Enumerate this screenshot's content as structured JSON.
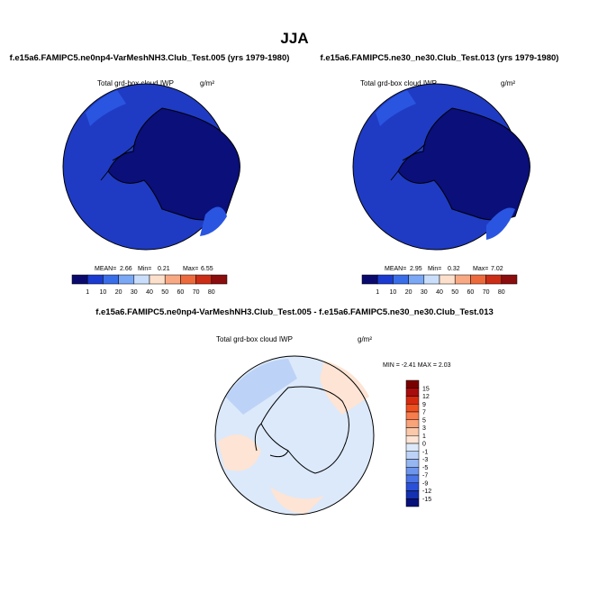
{
  "title": "JJA",
  "panels": [
    {
      "title": "f.e15a6.FAMIPC5.ne0np4-VarMeshNH3.Club_Test.005 (yrs 1979-1980)",
      "subtitle": "Total grd-box cloud IWP",
      "units": "g/m²",
      "stats": [
        "MEAN=",
        "2.66",
        "Min=",
        "0.21",
        "Max=",
        "6.55"
      ]
    },
    {
      "title": "f.e15a6.FAMIPC5.ne30_ne30.Club_Test.013 (yrs 1979-1980)",
      "subtitle": "Total grd-box cloud IWP",
      "units": "g/m²",
      "stats": [
        "MEAN=",
        "2.95",
        "Min=",
        "0.32",
        "Max=",
        "7.02"
      ]
    }
  ],
  "colorbar": {
    "labels": [
      1,
      10,
      20,
      30,
      40,
      50,
      60,
      70,
      80
    ],
    "colors": [
      "#0a0a6e",
      "#1b3ad0",
      "#3a6ee8",
      "#7aa8f5",
      "#c9defb",
      "#fde0cc",
      "#f8a983",
      "#ed6a3d",
      "#cc2d16",
      "#8b0d0d"
    ]
  },
  "difference": {
    "title": "f.e15a6.FAMIPC5.ne0np4-VarMeshNH3.Club_Test.005 - f.e15a6.FAMIPC5.ne30_ne30.Club_Test.013",
    "subtitle": "Total grd-box cloud IWP",
    "units": "g/m²",
    "stats": "MIN =  -2.41 MAX =   2.03",
    "colorbar": {
      "labels": [
        15,
        12,
        9,
        7,
        5,
        3,
        1,
        0,
        -1,
        -3,
        -5,
        -7,
        -9,
        -12,
        -15
      ],
      "colors": [
        "#7a0000",
        "#a80c0c",
        "#d62a10",
        "#f05020",
        "#f77d4d",
        "#f9a37a",
        "#fcc8aa",
        "#fde4d4",
        "#dce9fb",
        "#bcd3f7",
        "#96b6f2",
        "#6e95ec",
        "#4a74e6",
        "#2a50d8",
        "#1530b0",
        "#08107a"
      ]
    }
  }
}
